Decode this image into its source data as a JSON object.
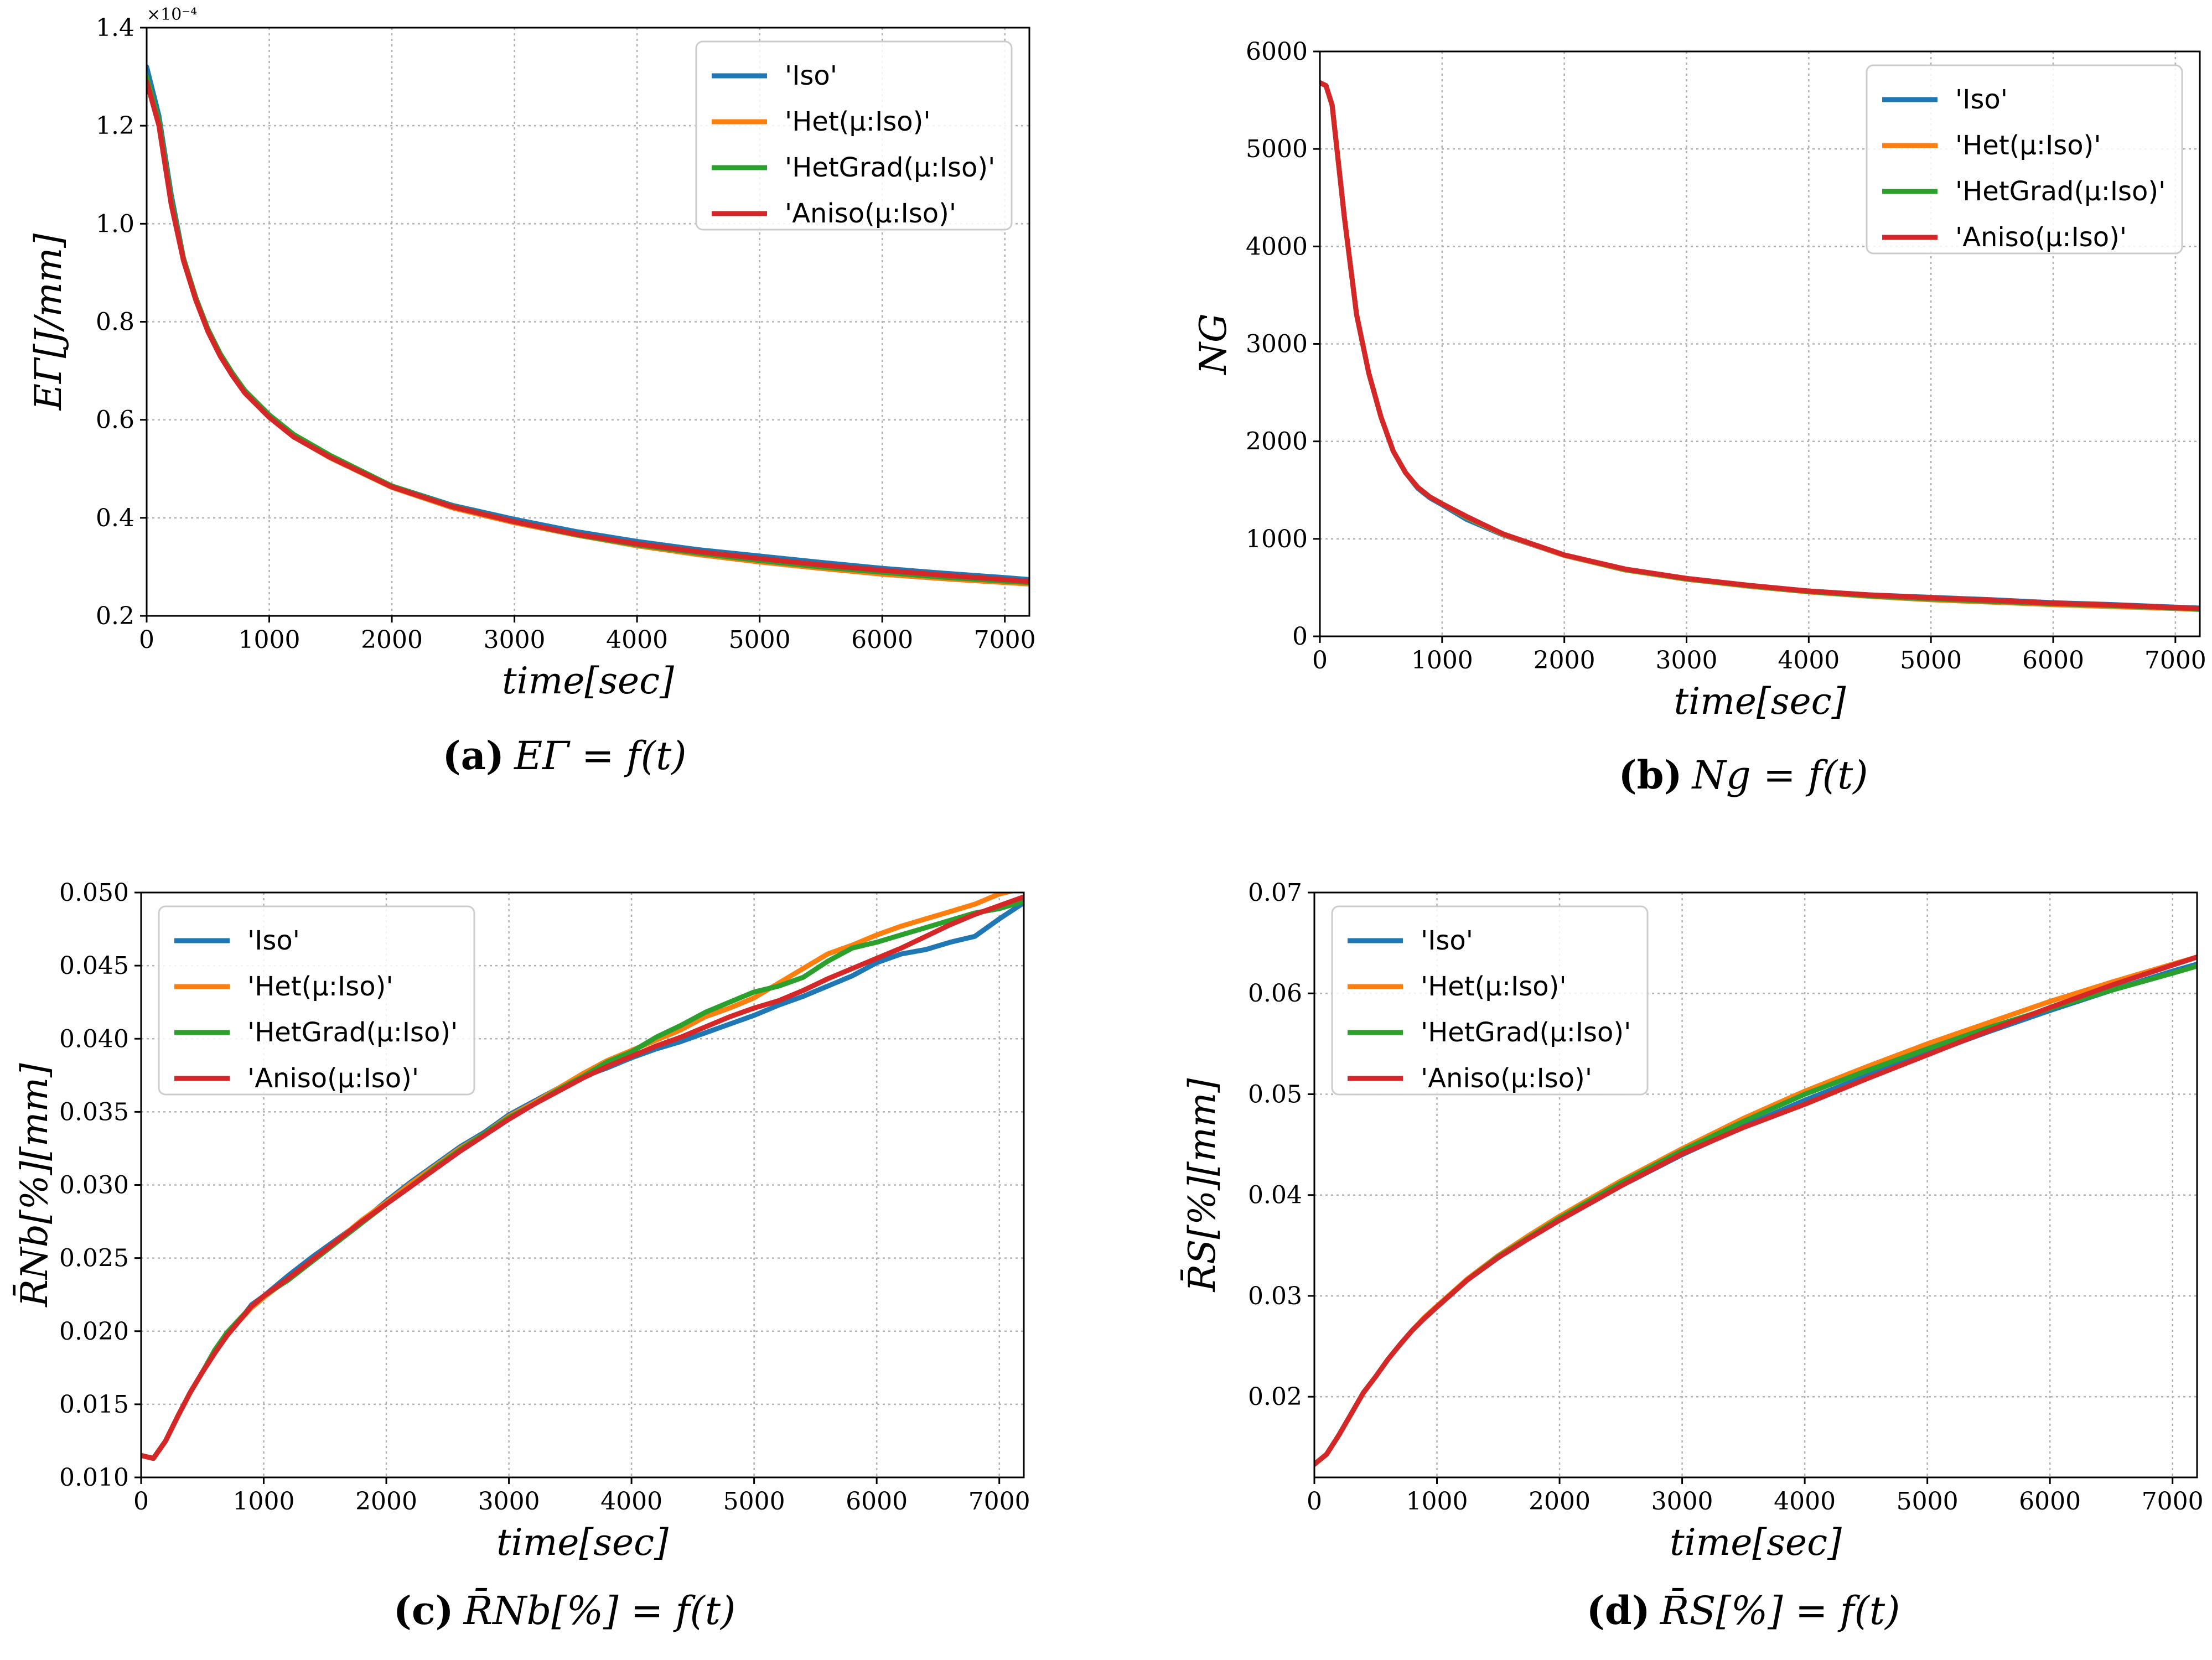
{
  "colors": {
    "Iso": "#1f77b4",
    "Het": "#ff7f0e",
    "HetGrad": "#2ca02c",
    "Aniso": "#d62728"
  },
  "chart_data": [
    {
      "id": "a",
      "type": "line",
      "caption_label": "(a)",
      "caption_formula": "EΓ = f(t)",
      "ylabel": "EΓ[J/mm]",
      "xlabel": "time[sec]",
      "multiplier": "×10⁻⁴",
      "xlim": [
        0,
        7200
      ],
      "ylim": [
        0.2,
        1.4
      ],
      "xticks": [
        0,
        1000,
        2000,
        3000,
        4000,
        5000,
        6000,
        7000
      ],
      "xtick_labels": [
        "0",
        "1000",
        "2000",
        "3000",
        "4000",
        "5000",
        "6000",
        "7000"
      ],
      "yticks": [
        0.2,
        0.4,
        0.6,
        0.8,
        1.0,
        1.2,
        1.4
      ],
      "ytick_labels": [
        "0.2",
        "0.4",
        "0.6",
        "0.8",
        "1.0",
        "1.2",
        "1.4"
      ],
      "legend_position": "top-right",
      "x": [
        0,
        100,
        200,
        300,
        400,
        500,
        600,
        700,
        800,
        900,
        1000,
        1200,
        1500,
        2000,
        2500,
        3000,
        3500,
        4000,
        4500,
        5000,
        5500,
        6000,
        6500,
        7000,
        7200
      ],
      "series": [
        {
          "name": "'Iso'",
          "color_key": "Iso",
          "values": [
            1.32,
            1.22,
            1.06,
            0.93,
            0.85,
            0.78,
            0.73,
            0.69,
            0.655,
            0.63,
            0.605,
            0.565,
            0.525,
            0.465,
            0.425,
            0.397,
            0.372,
            0.352,
            0.335,
            0.322,
            0.309,
            0.297,
            0.287,
            0.278,
            0.274
          ]
        },
        {
          "name": "'Het(μ:Iso)'",
          "color_key": "Het",
          "values": [
            1.29,
            1.21,
            1.05,
            0.925,
            0.845,
            0.78,
            0.73,
            0.69,
            0.655,
            0.63,
            0.605,
            0.565,
            0.522,
            0.462,
            0.42,
            0.39,
            0.365,
            0.343,
            0.325,
            0.31,
            0.297,
            0.285,
            0.276,
            0.268,
            0.265
          ]
        },
        {
          "name": "'HetGrad(μ:Iso)'",
          "color_key": "HetGrad",
          "values": [
            1.3,
            1.21,
            1.05,
            0.93,
            0.85,
            0.785,
            0.735,
            0.695,
            0.66,
            0.635,
            0.61,
            0.57,
            0.527,
            0.465,
            0.423,
            0.392,
            0.366,
            0.345,
            0.328,
            0.313,
            0.3,
            0.289,
            0.279,
            0.271,
            0.268
          ]
        },
        {
          "name": "'Aniso(μ:Iso)'",
          "color_key": "Aniso",
          "values": [
            1.29,
            1.2,
            1.04,
            0.925,
            0.845,
            0.78,
            0.73,
            0.69,
            0.655,
            0.63,
            0.605,
            0.565,
            0.523,
            0.463,
            0.422,
            0.392,
            0.367,
            0.347,
            0.331,
            0.317,
            0.304,
            0.293,
            0.283,
            0.274,
            0.27
          ]
        }
      ]
    },
    {
      "id": "b",
      "type": "line",
      "caption_label": "(b)",
      "caption_formula": "Ng = f(t)",
      "ylabel": "NG",
      "xlabel": "time[sec]",
      "multiplier": "",
      "xlim": [
        0,
        7200
      ],
      "ylim": [
        0,
        6000
      ],
      "xticks": [
        0,
        1000,
        2000,
        3000,
        4000,
        5000,
        6000,
        7000
      ],
      "xtick_labels": [
        "0",
        "1000",
        "2000",
        "3000",
        "4000",
        "5000",
        "6000",
        "7000"
      ],
      "yticks": [
        0,
        1000,
        2000,
        3000,
        4000,
        5000,
        6000
      ],
      "ytick_labels": [
        "0",
        "1000",
        "2000",
        "3000",
        "4000",
        "5000",
        "6000"
      ],
      "legend_position": "top-right",
      "x": [
        0,
        50,
        100,
        200,
        300,
        400,
        500,
        600,
        700,
        800,
        900,
        1000,
        1200,
        1500,
        2000,
        2500,
        3000,
        3500,
        4000,
        4500,
        5000,
        5500,
        6000,
        6500,
        7000,
        7200
      ],
      "series": [
        {
          "name": "'Iso'",
          "color_key": "Iso",
          "values": [
            5680,
            5650,
            5450,
            4300,
            3300,
            2700,
            2250,
            1900,
            1680,
            1520,
            1420,
            1350,
            1200,
            1040,
            830,
            680,
            590,
            520,
            465,
            425,
            400,
            375,
            345,
            325,
            300,
            290
          ]
        },
        {
          "name": "'Het(μ:Iso)'",
          "color_key": "Het",
          "values": [
            5680,
            5650,
            5450,
            4300,
            3300,
            2700,
            2250,
            1900,
            1680,
            1530,
            1430,
            1360,
            1220,
            1045,
            830,
            680,
            585,
            515,
            455,
            410,
            375,
            350,
            325,
            305,
            285,
            275
          ]
        },
        {
          "name": "'HetGrad(μ:Iso)'",
          "color_key": "HetGrad",
          "values": [
            5680,
            5650,
            5450,
            4300,
            3300,
            2700,
            2250,
            1900,
            1680,
            1530,
            1430,
            1360,
            1225,
            1050,
            835,
            685,
            590,
            520,
            460,
            415,
            385,
            360,
            335,
            315,
            290,
            280
          ]
        },
        {
          "name": "'Aniso(μ:Iso)'",
          "color_key": "Aniso",
          "values": [
            5680,
            5650,
            5450,
            4300,
            3300,
            2700,
            2250,
            1900,
            1680,
            1530,
            1430,
            1360,
            1230,
            1050,
            835,
            690,
            595,
            525,
            465,
            425,
            395,
            370,
            340,
            320,
            295,
            285
          ]
        }
      ]
    },
    {
      "id": "c",
      "type": "line",
      "caption_label": "(c)",
      "caption_formula": "R̄Nb[%] = f(t)",
      "ylabel": "R̄Nb[%][mm]",
      "xlabel": "time[sec]",
      "multiplier": "",
      "xlim": [
        0,
        7200
      ],
      "ylim": [
        0.01,
        0.05
      ],
      "xticks": [
        0,
        1000,
        2000,
        3000,
        4000,
        5000,
        6000,
        7000
      ],
      "xtick_labels": [
        "0",
        "1000",
        "2000",
        "3000",
        "4000",
        "5000",
        "6000",
        "7000"
      ],
      "yticks": [
        0.01,
        0.015,
        0.02,
        0.025,
        0.03,
        0.035,
        0.04,
        0.045,
        0.05
      ],
      "ytick_labels": [
        "0.010",
        "0.015",
        "0.020",
        "0.025",
        "0.030",
        "0.035",
        "0.040",
        "0.045",
        "0.050"
      ],
      "legend_position": "top-left",
      "x": [
        0,
        100,
        200,
        300,
        400,
        500,
        600,
        700,
        800,
        900,
        1000,
        1200,
        1400,
        1600,
        1800,
        2000,
        2200,
        2400,
        2600,
        2800,
        3000,
        3200,
        3400,
        3600,
        3800,
        4000,
        4200,
        4400,
        4600,
        4800,
        5000,
        5200,
        5400,
        5600,
        5800,
        6000,
        6200,
        6400,
        6600,
        6800,
        7000,
        7200
      ],
      "series": [
        {
          "name": "'Iso'",
          "color_key": "Iso",
          "values": [
            0.0115,
            0.0113,
            0.0125,
            0.0142,
            0.0158,
            0.0172,
            0.0185,
            0.0197,
            0.0207,
            0.0218,
            0.0224,
            0.0238,
            0.0251,
            0.0263,
            0.0275,
            0.0289,
            0.0302,
            0.0314,
            0.0326,
            0.0336,
            0.0348,
            0.0357,
            0.0366,
            0.0374,
            0.038,
            0.0387,
            0.0393,
            0.0398,
            0.0404,
            0.041,
            0.0416,
            0.0423,
            0.0429,
            0.0436,
            0.0443,
            0.0452,
            0.0458,
            0.0461,
            0.0466,
            0.047,
            0.0482,
            0.0493
          ]
        },
        {
          "name": "'Het(μ:Iso)'",
          "color_key": "Het",
          "values": [
            0.0115,
            0.0113,
            0.0125,
            0.0142,
            0.0158,
            0.0172,
            0.0185,
            0.0197,
            0.0207,
            0.0216,
            0.0223,
            0.0236,
            0.0249,
            0.0262,
            0.0276,
            0.0288,
            0.0301,
            0.0313,
            0.0325,
            0.0335,
            0.0347,
            0.0356,
            0.0366,
            0.0376,
            0.0385,
            0.0392,
            0.0399,
            0.0406,
            0.0415,
            0.0421,
            0.0428,
            0.0438,
            0.0448,
            0.0458,
            0.0464,
            0.0471,
            0.0477,
            0.0482,
            0.0487,
            0.0492,
            0.0499,
            0.0503
          ]
        },
        {
          "name": "'HetGrad(μ:Iso)'",
          "color_key": "HetGrad",
          "values": [
            0.0115,
            0.0113,
            0.0125,
            0.0142,
            0.0158,
            0.0172,
            0.0187,
            0.0199,
            0.0208,
            0.0217,
            0.0224,
            0.0235,
            0.0248,
            0.0261,
            0.0274,
            0.0287,
            0.0299,
            0.0312,
            0.0324,
            0.0335,
            0.0346,
            0.0355,
            0.0365,
            0.0374,
            0.0384,
            0.0391,
            0.0401,
            0.0409,
            0.0418,
            0.0425,
            0.0432,
            0.0436,
            0.0442,
            0.0453,
            0.0462,
            0.0466,
            0.0471,
            0.0476,
            0.0481,
            0.0486,
            0.0489,
            0.0494
          ]
        },
        {
          "name": "'Aniso(μ:Iso)'",
          "color_key": "Aniso",
          "values": [
            0.0115,
            0.0113,
            0.0125,
            0.0142,
            0.0158,
            0.0172,
            0.0185,
            0.0197,
            0.0207,
            0.0217,
            0.0224,
            0.0236,
            0.0249,
            0.0262,
            0.0275,
            0.0287,
            0.0299,
            0.0311,
            0.0323,
            0.0334,
            0.0345,
            0.0355,
            0.0364,
            0.0373,
            0.0381,
            0.0388,
            0.0395,
            0.0401,
            0.0408,
            0.0415,
            0.0421,
            0.0426,
            0.0433,
            0.0441,
            0.0448,
            0.0455,
            0.0462,
            0.047,
            0.0478,
            0.0485,
            0.0491,
            0.0497
          ]
        }
      ]
    },
    {
      "id": "d",
      "type": "line",
      "caption_label": "(d)",
      "caption_formula": "R̄S[%] = f(t)",
      "ylabel": "R̄S[%][mm]",
      "xlabel": "time[sec]",
      "multiplier": "",
      "xlim": [
        0,
        7200
      ],
      "ylim": [
        0.012,
        0.07
      ],
      "xticks": [
        0,
        1000,
        2000,
        3000,
        4000,
        5000,
        6000,
        7000
      ],
      "xtick_labels": [
        "0",
        "1000",
        "2000",
        "3000",
        "4000",
        "5000",
        "6000",
        "7000"
      ],
      "yticks": [
        0.02,
        0.03,
        0.04,
        0.05,
        0.06,
        0.07
      ],
      "ytick_labels": [
        "0.02",
        "0.03",
        "0.04",
        "0.05",
        "0.06",
        "0.07"
      ],
      "legend_position": "top-left",
      "x": [
        0,
        100,
        200,
        300,
        400,
        500,
        600,
        700,
        800,
        900,
        1000,
        1250,
        1500,
        1750,
        2000,
        2500,
        3000,
        3500,
        4000,
        4500,
        5000,
        5500,
        6000,
        6500,
        7000,
        7200
      ],
      "series": [
        {
          "name": "'Iso'",
          "color_key": "Iso",
          "values": [
            0.0133,
            0.0143,
            0.0162,
            0.0183,
            0.0204,
            0.022,
            0.0237,
            0.0252,
            0.0266,
            0.0278,
            0.0289,
            0.0316,
            0.0338,
            0.0357,
            0.0375,
            0.0409,
            0.044,
            0.0468,
            0.0494,
            0.0518,
            0.054,
            0.0562,
            0.0583,
            0.0603,
            0.0622,
            0.0629
          ]
        },
        {
          "name": "'Het(μ:Iso)'",
          "color_key": "Het",
          "values": [
            0.0133,
            0.0143,
            0.0162,
            0.0183,
            0.0204,
            0.022,
            0.0237,
            0.0252,
            0.0266,
            0.0279,
            0.029,
            0.0317,
            0.034,
            0.036,
            0.0379,
            0.0414,
            0.0446,
            0.0476,
            0.0503,
            0.0527,
            0.055,
            0.0571,
            0.0592,
            0.0611,
            0.0629,
            0.0636
          ]
        },
        {
          "name": "'HetGrad(μ:Iso)'",
          "color_key": "HetGrad",
          "values": [
            0.0133,
            0.0143,
            0.0162,
            0.0183,
            0.0204,
            0.022,
            0.0237,
            0.0252,
            0.0266,
            0.0278,
            0.0289,
            0.0316,
            0.0339,
            0.0358,
            0.0377,
            0.0412,
            0.0444,
            0.0473,
            0.05,
            0.0523,
            0.0545,
            0.0566,
            0.0585,
            0.0603,
            0.062,
            0.0627
          ]
        },
        {
          "name": "'Aniso(μ:Iso)'",
          "color_key": "Aniso",
          "values": [
            0.0133,
            0.0143,
            0.0162,
            0.0183,
            0.0204,
            0.022,
            0.0237,
            0.0252,
            0.0266,
            0.0278,
            0.0289,
            0.0316,
            0.0338,
            0.0357,
            0.0375,
            0.0409,
            0.0441,
            0.0467,
            0.049,
            0.0515,
            0.0539,
            0.0563,
            0.0586,
            0.0608,
            0.0628,
            0.0636
          ]
        }
      ]
    }
  ]
}
